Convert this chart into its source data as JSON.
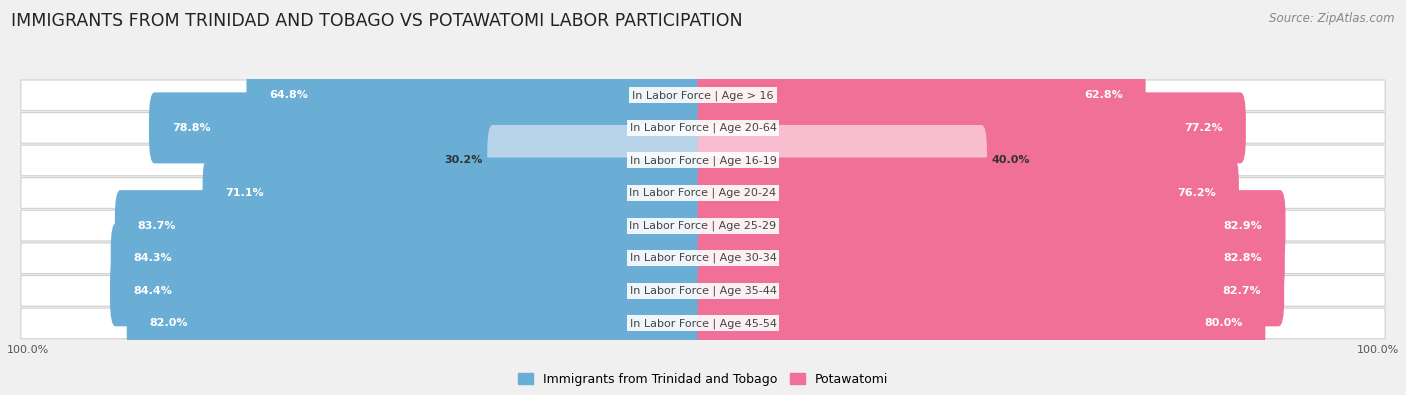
{
  "title": "IMMIGRANTS FROM TRINIDAD AND TOBAGO VS POTAWATOMI LABOR PARTICIPATION",
  "source": "Source: ZipAtlas.com",
  "categories": [
    "In Labor Force | Age > 16",
    "In Labor Force | Age 20-64",
    "In Labor Force | Age 16-19",
    "In Labor Force | Age 20-24",
    "In Labor Force | Age 25-29",
    "In Labor Force | Age 30-34",
    "In Labor Force | Age 35-44",
    "In Labor Force | Age 45-54"
  ],
  "left_values": [
    64.8,
    78.8,
    30.2,
    71.1,
    83.7,
    84.3,
    84.4,
    82.0
  ],
  "right_values": [
    62.8,
    77.2,
    40.0,
    76.2,
    82.9,
    82.8,
    82.7,
    80.0
  ],
  "left_color": "#6aaed6",
  "right_color": "#f07098",
  "left_color_light": "#b8d4ea",
  "right_color_light": "#f9bdd0",
  "left_label": "Immigrants from Trinidad and Tobago",
  "right_label": "Potawatomi",
  "bg_color": "#f0f0f0",
  "row_bg": "#e8e8e8",
  "max_value": 100.0,
  "center_label_color": "#444444",
  "bar_height": 0.58,
  "title_fontsize": 12.5,
  "label_fontsize": 8.0,
  "value_fontsize": 8.0,
  "legend_fontsize": 9,
  "source_fontsize": 8.5,
  "light_threshold": 55
}
